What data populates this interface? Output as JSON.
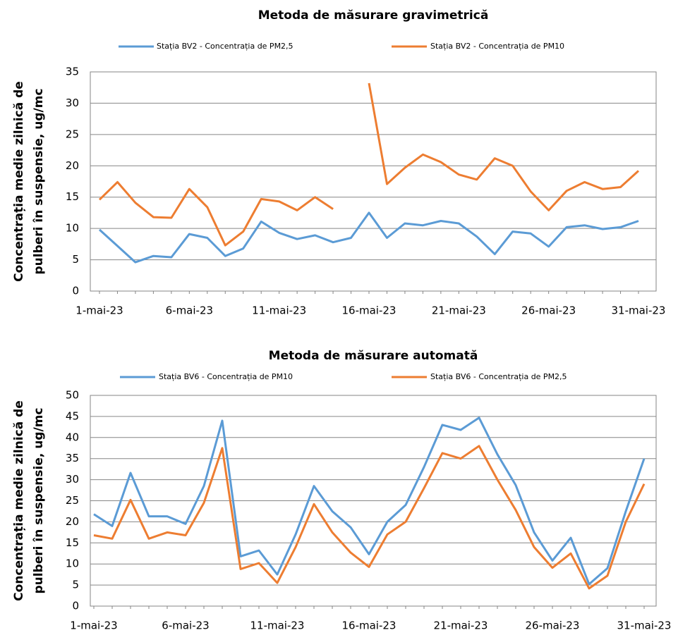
{
  "chart_data": [
    {
      "type": "line",
      "title": "Metoda de măsurare  gravimetrică",
      "ylabel": [
        "Concentrația medie zilnică de",
        "pulberi în suspensie, ug/mc"
      ],
      "categories": [
        "1-mai-23",
        null,
        null,
        null,
        null,
        "6-mai-23",
        null,
        null,
        null,
        null,
        "11-mai-23",
        null,
        null,
        null,
        null,
        "16-mai-23",
        null,
        null,
        null,
        null,
        "21-mai-23",
        null,
        null,
        null,
        null,
        "26-mai-23",
        null,
        null,
        null,
        null,
        "31-mai-23"
      ],
      "series": [
        {
          "name": "Stația BV2 - Concentrația de PM2,5",
          "color": "#5b9bd5",
          "values": [
            9.8,
            7.2,
            4.6,
            5.6,
            5.4,
            9.1,
            8.5,
            5.6,
            6.8,
            11.1,
            9.3,
            8.3,
            8.9,
            7.8,
            8.5,
            12.5,
            8.5,
            10.8,
            10.5,
            11.2,
            10.8,
            8.7,
            5.9,
            9.5,
            9.2,
            7.1,
            10.2,
            10.5,
            9.9,
            10.2,
            11.2
          ]
        },
        {
          "name": "Stația BV2 - Concentrația de PM10",
          "color": "#ed7d31",
          "values": [
            14.6,
            17.4,
            14.1,
            11.8,
            11.7,
            16.3,
            13.4,
            7.3,
            9.5,
            14.7,
            14.3,
            12.9,
            15.0,
            13.1,
            null,
            33.2,
            17.1,
            19.7,
            21.8,
            20.6,
            18.6,
            17.8,
            21.2,
            20.0,
            15.9,
            12.9,
            16.0,
            17.4,
            16.3,
            16.6,
            19.2
          ]
        }
      ],
      "ylim": [
        0,
        35
      ],
      "yticks": [
        0,
        5,
        10,
        15,
        20,
        25,
        30,
        35
      ],
      "grid": true
    },
    {
      "type": "line",
      "title": "Metoda de măsurare  automată",
      "ylabel": [
        "Concentrația medie zilnică de",
        "pulberi în suspensie, ug/mc"
      ],
      "categories": [
        "1-mai-23",
        null,
        null,
        null,
        null,
        "6-mai-23",
        null,
        null,
        null,
        null,
        "11-mai-23",
        null,
        null,
        null,
        null,
        "16-mai-23",
        null,
        null,
        null,
        null,
        "21-mai-23",
        null,
        null,
        null,
        null,
        "26-mai-23",
        null,
        null,
        null,
        null,
        "31-mai-23"
      ],
      "series": [
        {
          "name": "Stația BV6 - Concentrația de PM10",
          "color": "#5b9bd5",
          "values": [
            21.8,
            19,
            31.6,
            21.3,
            21.3,
            19.5,
            28.5,
            44,
            11.8,
            13.2,
            7.5,
            17,
            28.5,
            22.5,
            18.7,
            12.3,
            20,
            24,
            33,
            43,
            41.8,
            44.7,
            36,
            28.7,
            17.5,
            10.8,
            16.2,
            5.2,
            9,
            22.5,
            35
          ]
        },
        {
          "name": "Stația BV6 - Concentrația de PM2,5",
          "color": "#ed7d31",
          "values": [
            16.8,
            16,
            25.2,
            16,
            17.5,
            16.8,
            24.5,
            37.5,
            8.8,
            10.2,
            5.5,
            14,
            24.2,
            17.5,
            12.7,
            9.3,
            17,
            20,
            28,
            36.3,
            35,
            38,
            30,
            22.8,
            14,
            9.1,
            12.5,
            4.2,
            7.2,
            20,
            29
          ]
        }
      ],
      "ylim": [
        0,
        50
      ],
      "yticks": [
        0,
        5,
        10,
        15,
        20,
        25,
        30,
        35,
        40,
        45,
        50
      ],
      "grid": true
    }
  ]
}
